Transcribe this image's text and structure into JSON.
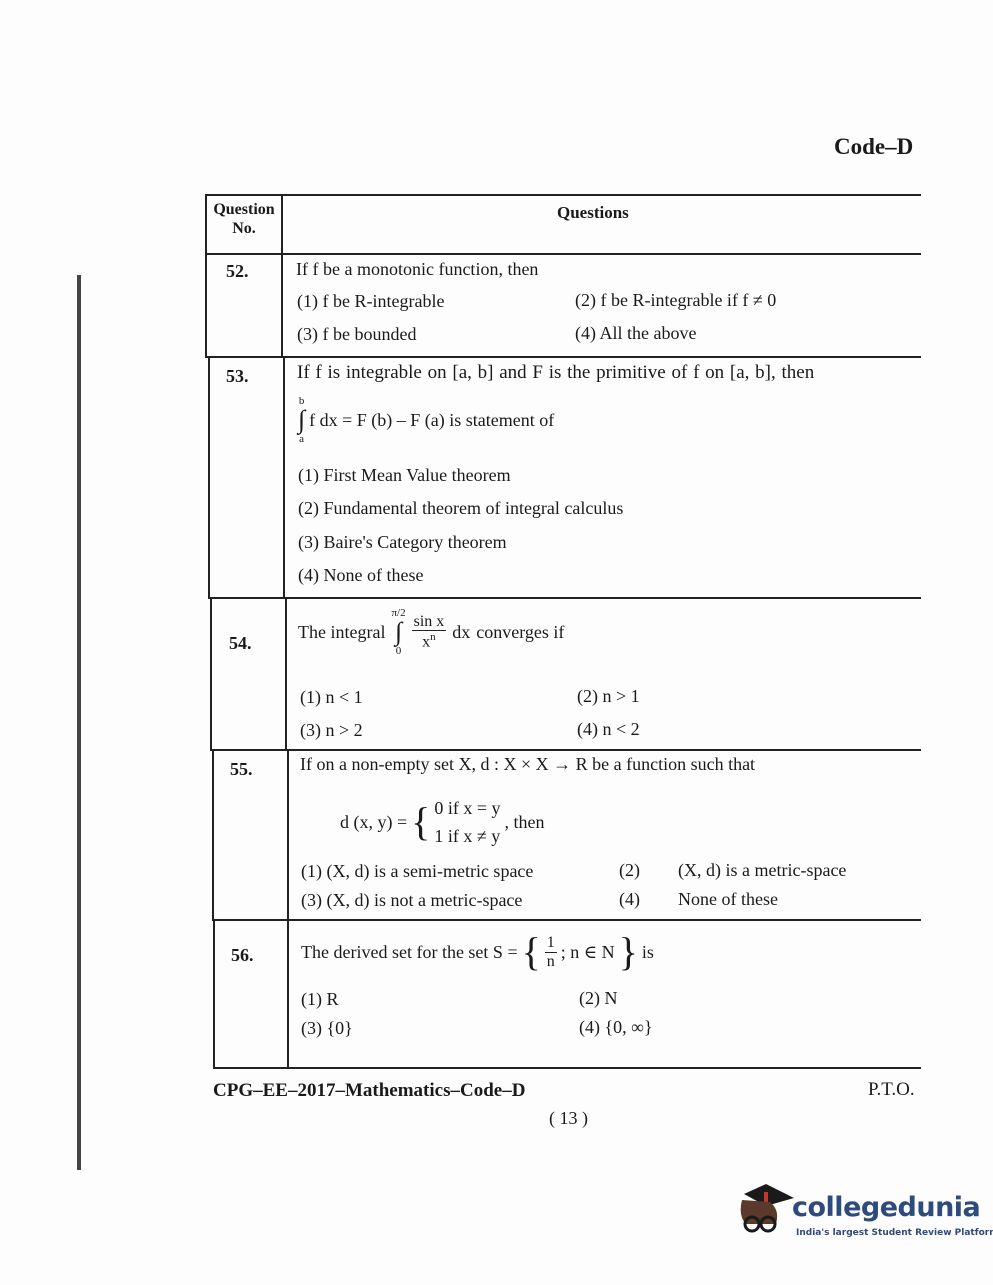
{
  "header": {
    "code": "Code–D"
  },
  "table": {
    "col_question_no": "Question No.",
    "col_questions": "Questions",
    "questions": [
      {
        "no": "52.",
        "text": "If f be a monotonic function, then",
        "options": [
          "(1)  f be R-integrable",
          "(2)  f be R-integrable if f ≠ 0",
          "(3)  f be bounded",
          "(4)  All the above"
        ]
      },
      {
        "no": "53.",
        "text": "If f is integrable on [a, b] and F is the primitive of f on [a, b], then",
        "formula": "f dx = F (b) – F (a) is statement of",
        "upper": "b",
        "lower": "a",
        "options": [
          "(1)  First Mean Value theorem",
          "(2)  Fundamental theorem of integral calculus",
          "(3)  Baire's Category theorem",
          "(4)  None of these"
        ]
      },
      {
        "no": "54.",
        "text_before": "The integral",
        "upper": "π/2",
        "lower": "0",
        "num": "sin x",
        "den": "x",
        "den_exp": "n",
        "dx": "dx",
        "text_after": "converges if",
        "options": [
          "(1)  n < 1",
          "(2)  n > 1",
          "(3)  n > 2",
          "(4)  n < 2"
        ]
      },
      {
        "no": "55.",
        "text": "If on a non-empty set X, d : X × X → R be a function such that",
        "lhs": "d (x, y) =",
        "case1": "0 if x = y",
        "case2": "1 if x ≠ y",
        "then": ", then",
        "options": [
          "(1)  (X, d) is a semi-metric space",
          "(2)",
          "(X, d) is a metric-space",
          "(3)  (X, d) is not a metric-space",
          "(4)",
          "None of these"
        ]
      },
      {
        "no": "56.",
        "text_before": "The derived set for the set S =",
        "num": "1",
        "den": "n",
        "set_rest": "; n ∈ N",
        "text_after": "is",
        "options": [
          "(1)  R",
          "(2)  N",
          "(3)  {0}",
          "(4)  {0, ∞}"
        ]
      }
    ]
  },
  "footer": {
    "left": "CPG–EE–2017–Mathematics–Code–D",
    "right": "P.T.O.",
    "page": "( 13 )"
  },
  "logo": {
    "name": "collegedunia",
    "tagline": "India's largest Student Review Platform",
    "colors": {
      "text": "#2f4a7d",
      "cap": "#1a1a1a",
      "tassel": "#c0392b"
    }
  }
}
